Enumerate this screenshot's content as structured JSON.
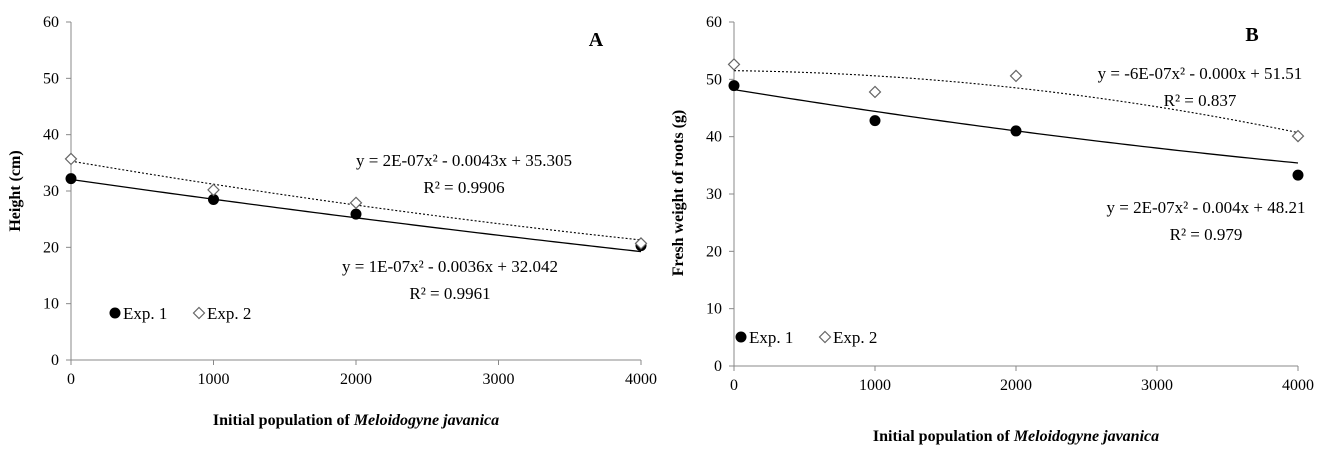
{
  "chart_data": [
    {
      "type": "scatter",
      "panel_label": "A",
      "ylabel": "Height (cm)",
      "xlabel_prefix": "Initial population of ",
      "xlabel_italic": "Meloidogyne javanica",
      "xlim": [
        0,
        4000
      ],
      "ylim": [
        0,
        60
      ],
      "x_ticks": [
        "0",
        "1000",
        "2000",
        "3000",
        "4000"
      ],
      "y_ticks": [
        "0",
        "10",
        "20",
        "30",
        "40",
        "50",
        "60"
      ],
      "series": [
        {
          "name": "Exp. 1",
          "marker": "filled-circle",
          "trendline": "solid",
          "x": [
            0,
            1000,
            2000,
            4000
          ],
          "y": [
            32.2,
            28.5,
            25.9,
            20.3
          ],
          "fit": [
            1e-07,
            -0.0036,
            32.042
          ],
          "equation": "y = 1E-07x² - 0.0036x + 32.042",
          "r2": "R² = 0.9961"
        },
        {
          "name": "Exp. 2",
          "marker": "open-diamond",
          "trendline": "dotted",
          "x": [
            0,
            1000,
            2000,
            4000
          ],
          "y": [
            35.7,
            30.2,
            27.9,
            20.7
          ],
          "fit": [
            2e-07,
            -0.0043,
            35.305
          ],
          "equation": "y = 2E-07x² - 0.0043x + 35.305",
          "r2": "R² = 0.9906"
        }
      ],
      "grid": false,
      "legend": "bottom-left"
    },
    {
      "type": "scatter",
      "panel_label": "B",
      "ylabel": "Fresh weight of roots (g)",
      "xlabel_prefix": "Initial population of ",
      "xlabel_italic": "Meloidogyne javanica",
      "xlim": [
        0,
        4000
      ],
      "ylim": [
        0,
        60
      ],
      "x_ticks": [
        "0",
        "1000",
        "2000",
        "3000",
        "4000"
      ],
      "y_ticks": [
        "0",
        "10",
        "20",
        "30",
        "40",
        "50",
        "60"
      ],
      "series": [
        {
          "name": "Exp. 1",
          "marker": "filled-circle",
          "trendline": "solid",
          "x": [
            0,
            1000,
            2000,
            4000
          ],
          "y": [
            48.9,
            42.8,
            41.0,
            33.3
          ],
          "fit": [
            2e-07,
            -0.004,
            48.21
          ],
          "equation": "y = 2E-07x² - 0.004x + 48.21",
          "r2": "R² = 0.979"
        },
        {
          "name": "Exp. 2",
          "marker": "open-diamond",
          "trendline": "dotted",
          "x": [
            0,
            1000,
            2000,
            4000
          ],
          "y": [
            52.6,
            47.8,
            50.6,
            40.1
          ],
          "fit": [
            -6e-07,
            -0.0003,
            51.51
          ],
          "equation": "y = -6E-07x² - 0.000x + 51.51",
          "r2": "R² = 0.837"
        }
      ],
      "grid": false,
      "legend": "bottom-left"
    }
  ]
}
